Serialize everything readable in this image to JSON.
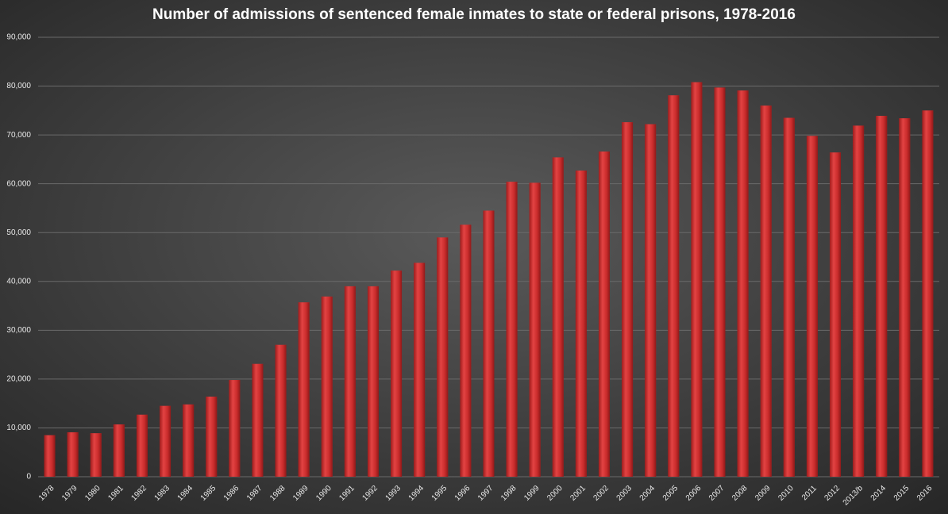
{
  "chart_data": {
    "type": "bar",
    "title": "Number of admissions of sentenced female inmates to state or federal prisons, 1978-2016",
    "categories": [
      "1978",
      "1979",
      "1980",
      "1981",
      "1982",
      "1983",
      "1984",
      "1985",
      "1986",
      "1987",
      "1988",
      "1989",
      "1990",
      "1991",
      "1992",
      "1993",
      "1994",
      "1995",
      "1996",
      "1997",
      "1998",
      "1999",
      "2000",
      "2001",
      "2002",
      "2003",
      "2004",
      "2005",
      "2006",
      "2007",
      "2008",
      "2009",
      "2010",
      "2011",
      "2012",
      "2013/b",
      "2014",
      "2015",
      "2016"
    ],
    "values": [
      8500,
      9100,
      8900,
      10700,
      12700,
      14500,
      14800,
      16400,
      19800,
      23100,
      27000,
      35700,
      36900,
      39000,
      39000,
      42200,
      43800,
      49000,
      51600,
      54500,
      60400,
      60200,
      65400,
      62700,
      66600,
      72600,
      72200,
      78100,
      80800,
      79700,
      79100,
      76000,
      73500,
      69800,
      66400,
      71900,
      73900,
      73400,
      75000
    ],
    "color": "#d23434",
    "ylim": [
      0,
      90000
    ],
    "yticks": [
      0,
      {
        "value": 10000,
        "label": "10,000"
      },
      {
        "value": 20000,
        "label": "20,000"
      },
      {
        "value": 30000,
        "label": "30,000"
      },
      {
        "value": 40000,
        "label": "40,000"
      },
      {
        "value": 50000,
        "label": "50,000"
      },
      {
        "value": 60000,
        "label": "60,000"
      },
      {
        "value": 70000,
        "label": "70,000"
      },
      {
        "value": 80000,
        "label": "80,000"
      },
      {
        "value": 90000,
        "label": "90,000"
      }
    ],
    "grid": true
  }
}
